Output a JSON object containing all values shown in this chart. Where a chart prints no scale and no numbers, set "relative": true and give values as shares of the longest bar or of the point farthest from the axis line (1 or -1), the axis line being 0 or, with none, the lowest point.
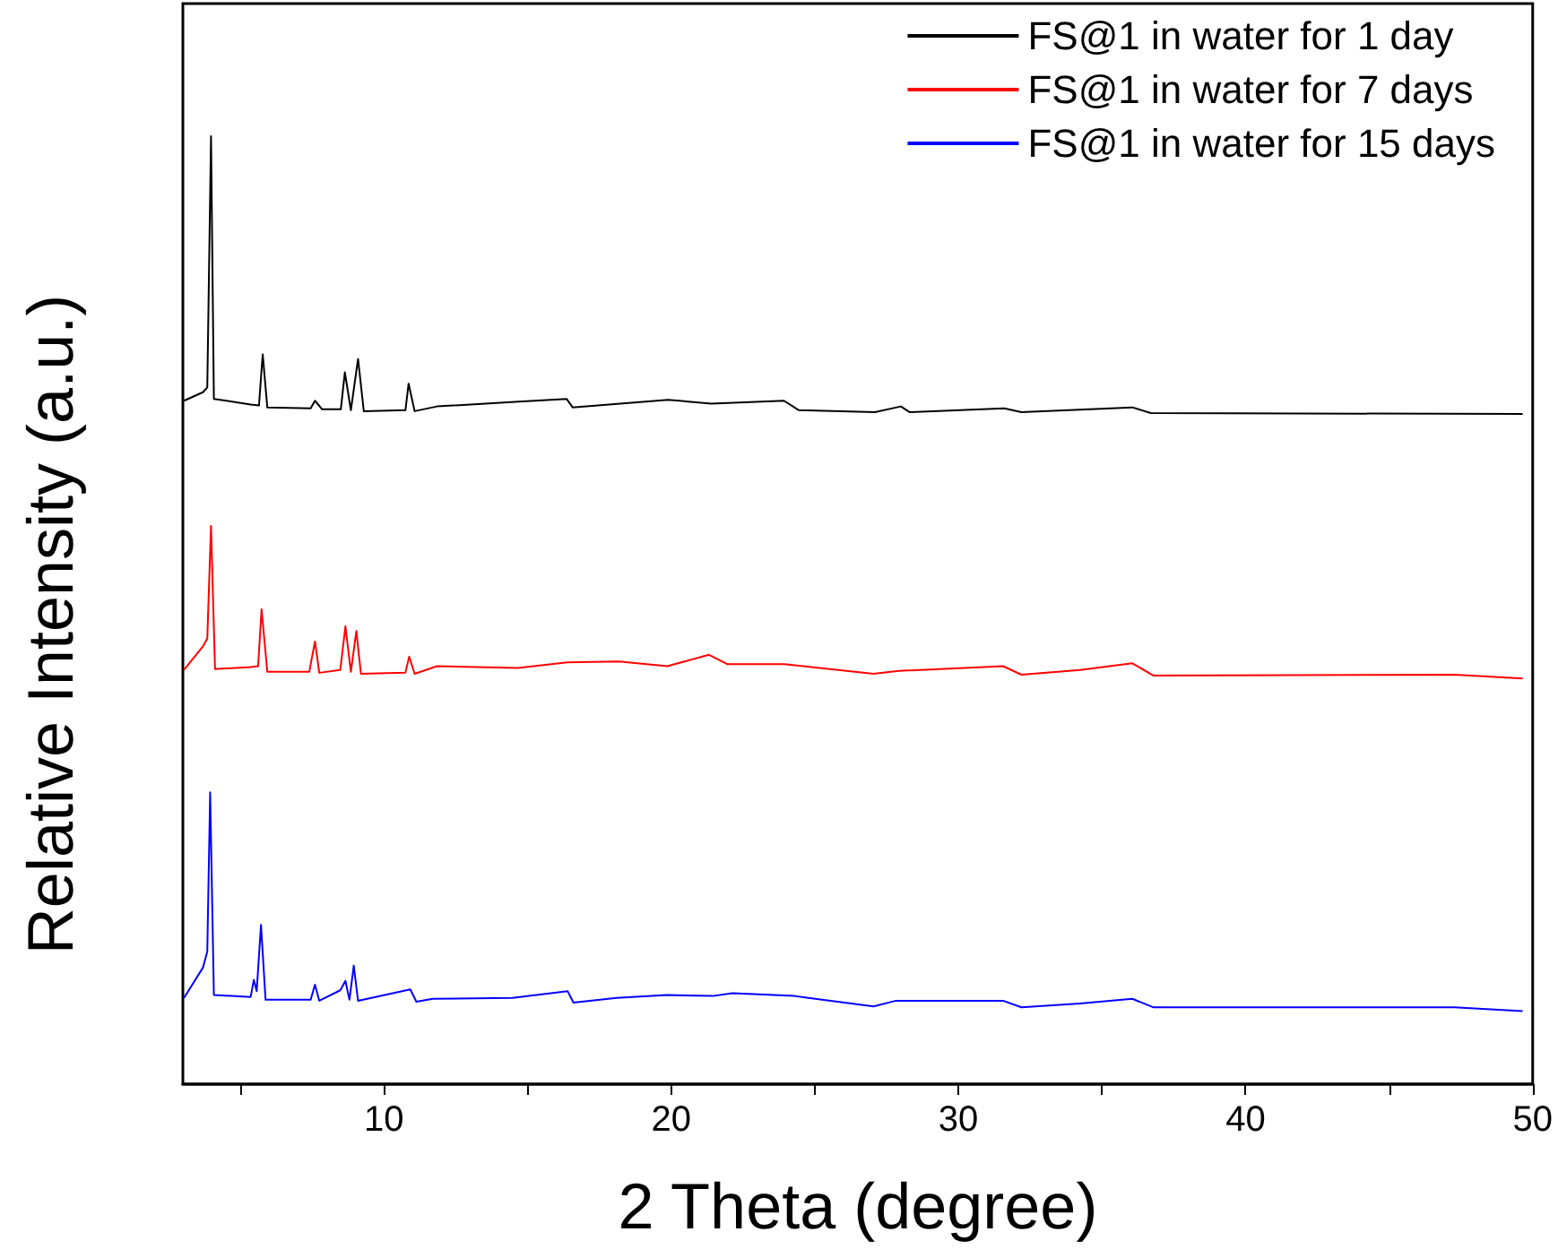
{
  "chart_data": {
    "type": "line",
    "relative": true,
    "xlabel": "2 Theta (degree)",
    "ylabel": "Relative Intensity (a.u.)",
    "xlim": [
      3,
      50
    ],
    "xticks": [
      {
        "value": 5,
        "label": null
      },
      10,
      {
        "value": 15,
        "label": null
      },
      20,
      {
        "value": 25,
        "label": null
      },
      30,
      {
        "value": 35,
        "label": null
      },
      40,
      {
        "value": 45,
        "label": null
      },
      50
    ],
    "legend": "top right",
    "grid": false,
    "series": [
      {
        "name": "FS@1 in water for 1 day",
        "color": "#000000",
        "x": [
          3.04,
          3.7,
          3.85,
          3.98,
          4.08,
          5.36,
          5.65,
          5.78,
          5.94,
          7.45,
          7.6,
          7.85,
          8.5,
          8.64,
          8.85,
          9.1,
          9.3,
          10.75,
          10.86,
          11.07,
          11.85,
          14.7,
          16.36,
          16.57,
          19.89,
          21.4,
          23.93,
          24.45,
          27.1,
          28.0,
          28.3,
          31.6,
          32.2,
          36.06,
          36.7,
          49.65
        ],
        "values": [
          0.721,
          0.73,
          0.735,
          1.0,
          0.723,
          0.717,
          0.716,
          0.77,
          0.714,
          0.713,
          0.721,
          0.712,
          0.712,
          0.751,
          0.711,
          0.765,
          0.71,
          0.711,
          0.739,
          0.71,
          0.715,
          0.72,
          0.723,
          0.714,
          0.722,
          0.718,
          0.721,
          0.711,
          0.709,
          0.715,
          0.709,
          0.713,
          0.709,
          0.714,
          0.708,
          0.707
        ]
      },
      {
        "name": "FS@1 in water for 7 days",
        "color": "#ff0000",
        "x": [
          3.04,
          3.7,
          3.85,
          3.98,
          4.12,
          5.36,
          5.62,
          5.74,
          5.94,
          7.4,
          7.6,
          7.75,
          8.48,
          8.66,
          8.85,
          9.04,
          9.2,
          10.75,
          10.88,
          11.07,
          11.85,
          14.66,
          16.39,
          18.17,
          19.87,
          21.32,
          21.97,
          23.94,
          27.05,
          27.93,
          31.56,
          32.2,
          34.24,
          36.06,
          36.8,
          47.27,
          49.65
        ],
        "values": [
          0.437,
          0.462,
          0.47,
          0.589,
          0.438,
          0.44,
          0.441,
          0.501,
          0.435,
          0.435,
          0.467,
          0.434,
          0.437,
          0.483,
          0.435,
          0.478,
          0.433,
          0.434,
          0.451,
          0.433,
          0.441,
          0.439,
          0.445,
          0.446,
          0.441,
          0.453,
          0.443,
          0.443,
          0.433,
          0.436,
          0.441,
          0.432,
          0.437,
          0.444,
          0.431,
          0.432,
          0.428
        ]
      },
      {
        "name": "FS@1 in water for 15 days",
        "color": "#0000ff",
        "x": [
          3.04,
          3.7,
          3.85,
          3.95,
          4.08,
          5.36,
          5.47,
          5.57,
          5.72,
          5.88,
          7.45,
          7.6,
          7.75,
          8.48,
          8.66,
          8.8,
          8.95,
          9.1,
          10.92,
          11.13,
          11.7,
          14.47,
          16.4,
          16.6,
          18.1,
          19.86,
          21.45,
          22.14,
          24.3,
          24.78,
          27.05,
          27.83,
          31.56,
          32.2,
          34.24,
          36.06,
          36.8,
          47.27,
          49.65
        ],
        "values": [
          0.091,
          0.123,
          0.14,
          0.308,
          0.094,
          0.092,
          0.11,
          0.098,
          0.168,
          0.089,
          0.089,
          0.105,
          0.088,
          0.099,
          0.109,
          0.089,
          0.125,
          0.088,
          0.1,
          0.087,
          0.09,
          0.091,
          0.098,
          0.086,
          0.091,
          0.094,
          0.093,
          0.096,
          0.093,
          0.091,
          0.082,
          0.088,
          0.088,
          0.081,
          0.085,
          0.09,
          0.081,
          0.081,
          0.077
        ]
      }
    ]
  }
}
